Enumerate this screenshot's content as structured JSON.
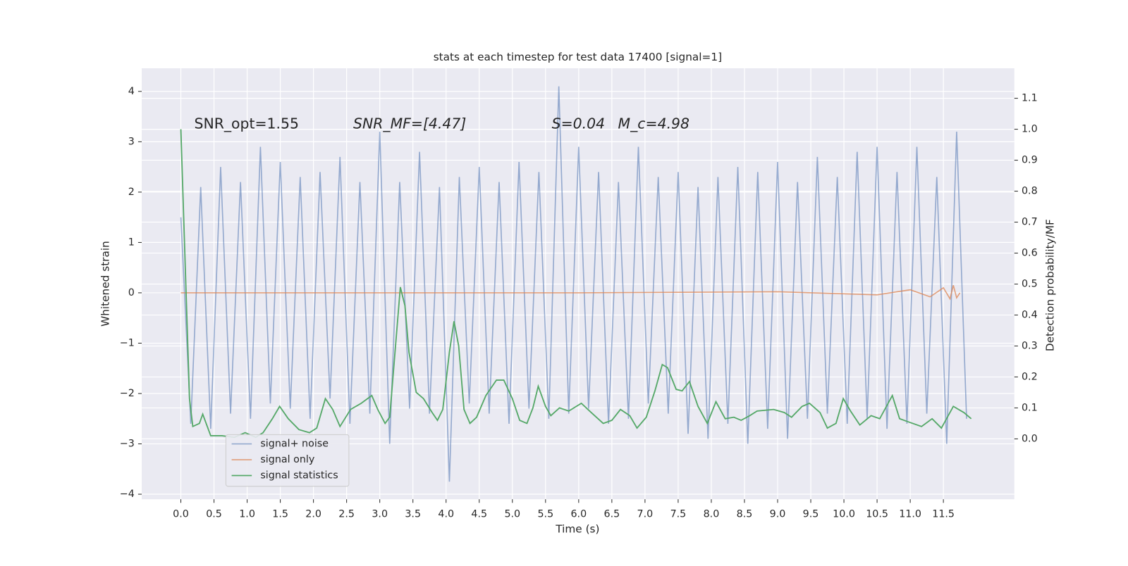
{
  "chart_data": {
    "type": "line",
    "title": "stats at each timestep for test data 17400 [signal=1]",
    "xlabel": "Time (s)",
    "ylabel": "Whitened strain",
    "y2label": "Detection probability/MF",
    "annotations": [
      "SNR_opt=1.55",
      "SNR_MF=[4.47]",
      "S=0.04",
      "M_c=4.98"
    ],
    "xlim": [
      -0.59,
      12.57
    ],
    "xticks": [
      {
        "value": 0,
        "label": "0.0"
      },
      0.5,
      {
        "value": 1,
        "label": "1.0"
      },
      1.5,
      {
        "value": 2,
        "label": "2.0"
      },
      2.5,
      {
        "value": 3,
        "label": "3.0"
      },
      3.5,
      {
        "value": 4,
        "label": "4.0"
      },
      4.5,
      {
        "value": 5,
        "label": "5.0"
      },
      5.5,
      {
        "value": 6,
        "label": "6.0"
      },
      6.5,
      {
        "value": 7,
        "label": "7.0"
      },
      7.5,
      {
        "value": 8,
        "label": "8.0"
      },
      8.5,
      {
        "value": 9,
        "label": "9.0"
      },
      9.5,
      {
        "value": 10,
        "label": "10.0"
      },
      10.5,
      {
        "value": 11,
        "label": "11.0"
      },
      11.5
    ],
    "ylim": [
      -4.1,
      4.46
    ],
    "yticks": [
      {
        "value": -4,
        "label": "−4"
      },
      {
        "value": -3,
        "label": "−3"
      },
      {
        "value": -2,
        "label": "−2"
      },
      {
        "value": -1,
        "label": "−1"
      },
      0,
      1,
      2,
      3,
      4
    ],
    "y2lim": [
      -0.195,
      1.197
    ],
    "y2ticks": [
      {
        "value": 0,
        "label": "0.0"
      },
      0.1,
      0.2,
      0.3,
      0.4,
      0.5,
      0.6,
      0.7,
      0.8,
      0.9,
      {
        "value": 1,
        "label": "1.0"
      },
      1.1
    ],
    "grid": true,
    "legend": "lower left",
    "series": [
      {
        "name": "signal+ noise",
        "color": "#4c72b0",
        "x": [
          0,
          0.15,
          0.3,
          0.45,
          0.6,
          0.75,
          0.9,
          1.05,
          1.2,
          1.35,
          1.5,
          1.65,
          1.8,
          1.95,
          2.1,
          2.25,
          2.4,
          2.55,
          2.7,
          2.85,
          3.0,
          3.15,
          3.3,
          3.45,
          3.6,
          3.75,
          3.9,
          4.05,
          4.2,
          4.35,
          4.5,
          4.65,
          4.8,
          4.95,
          5.1,
          5.25,
          5.4,
          5.55,
          5.7,
          5.85,
          6.0,
          6.15,
          6.3,
          6.45,
          6.6,
          6.75,
          6.9,
          7.05,
          7.2,
          7.35,
          7.5,
          7.65,
          7.8,
          7.95,
          8.1,
          8.25,
          8.4,
          8.55,
          8.7,
          8.85,
          9.0,
          9.15,
          9.3,
          9.45,
          9.6,
          9.75,
          9.9,
          10.05,
          10.2,
          10.35,
          10.5,
          10.65,
          10.8,
          10.95,
          11.1,
          11.25,
          11.4,
          11.55,
          11.7,
          11.85
        ],
        "values": [
          1.5,
          -2.6,
          2.1,
          -2.7,
          2.5,
          -2.4,
          2.2,
          -2.5,
          2.9,
          -2.2,
          2.6,
          -2.3,
          2.3,
          -2.5,
          2.4,
          -2.1,
          2.7,
          -2.6,
          2.2,
          -2.4,
          3.2,
          -3.0,
          2.2,
          -2.3,
          2.8,
          -2.4,
          2.1,
          -3.75,
          2.3,
          -2.2,
          2.5,
          -2.4,
          2.2,
          -2.6,
          2.6,
          -2.3,
          2.4,
          -2.5,
          4.1,
          -2.4,
          2.9,
          -2.3,
          2.4,
          -2.6,
          2.2,
          -2.5,
          2.9,
          -2.2,
          2.3,
          -2.4,
          2.4,
          -2.8,
          2.1,
          -2.9,
          2.3,
          -2.6,
          2.5,
          -3.0,
          2.4,
          -2.7,
          2.6,
          -2.9,
          2.2,
          -2.5,
          2.7,
          -2.4,
          2.3,
          -2.6,
          2.8,
          -2.5,
          2.9,
          -2.7,
          2.4,
          -2.6,
          2.9,
          -2.4,
          2.3,
          -3.0,
          3.2,
          -2.5
        ]
      },
      {
        "name": "signal only",
        "color": "#dd8452",
        "x": [
          0,
          6,
          9,
          10.5,
          11.0,
          11.3,
          11.5,
          11.6,
          11.65,
          11.7,
          11.75
        ],
        "values": [
          0,
          0,
          0.02,
          -0.04,
          0.06,
          -0.08,
          0.1,
          -0.12,
          0.15,
          -0.1,
          0
        ]
      },
      {
        "name": "signal statistics",
        "color": "#55a868",
        "axis": "y2",
        "x": [
          0,
          0.13,
          0.18,
          0.28,
          0.33,
          0.45,
          0.62,
          0.81,
          0.97,
          1.13,
          1.24,
          1.38,
          1.49,
          1.62,
          1.78,
          1.94,
          2.05,
          2.18,
          2.29,
          2.4,
          2.56,
          2.72,
          2.88,
          2.97,
          3.08,
          3.15,
          3.31,
          3.38,
          3.44,
          3.55,
          3.66,
          3.79,
          3.87,
          3.95,
          4.05,
          4.12,
          4.19,
          4.27,
          4.36,
          4.46,
          4.6,
          4.76,
          4.87,
          5.0,
          5.11,
          5.22,
          5.31,
          5.39,
          5.5,
          5.58,
          5.71,
          5.85,
          6.04,
          6.19,
          6.37,
          6.5,
          6.63,
          6.77,
          6.88,
          7.02,
          7.15,
          7.26,
          7.34,
          7.47,
          7.56,
          7.67,
          7.8,
          7.94,
          8.07,
          8.21,
          8.34,
          8.45,
          8.58,
          8.69,
          8.94,
          9.1,
          9.21,
          9.37,
          9.48,
          9.64,
          9.75,
          9.88,
          9.99,
          10.1,
          10.24,
          10.41,
          10.54,
          10.73,
          10.84,
          10.97,
          11.17,
          11.33,
          11.47,
          11.65,
          11.81,
          11.92
        ],
        "values": [
          1.0,
          0.13,
          0.04,
          0.05,
          0.08,
          0.01,
          0.01,
          0.005,
          0.02,
          0.005,
          0.02,
          0.065,
          0.105,
          0.065,
          0.03,
          0.02,
          0.035,
          0.13,
          0.095,
          0.04,
          0.095,
          0.115,
          0.14,
          0.095,
          0.05,
          0.07,
          0.49,
          0.43,
          0.28,
          0.15,
          0.13,
          0.085,
          0.06,
          0.095,
          0.28,
          0.38,
          0.3,
          0.095,
          0.05,
          0.07,
          0.14,
          0.19,
          0.19,
          0.13,
          0.06,
          0.05,
          0.1,
          0.17,
          0.105,
          0.075,
          0.1,
          0.09,
          0.115,
          0.085,
          0.05,
          0.06,
          0.095,
          0.075,
          0.035,
          0.07,
          0.155,
          0.24,
          0.23,
          0.16,
          0.155,
          0.185,
          0.105,
          0.05,
          0.12,
          0.065,
          0.07,
          0.06,
          0.075,
          0.09,
          0.095,
          0.085,
          0.07,
          0.105,
          0.115,
          0.085,
          0.035,
          0.05,
          0.13,
          0.09,
          0.045,
          0.075,
          0.065,
          0.14,
          0.065,
          0.055,
          0.04,
          0.065,
          0.035,
          0.105,
          0.085,
          0.065
        ]
      }
    ]
  }
}
